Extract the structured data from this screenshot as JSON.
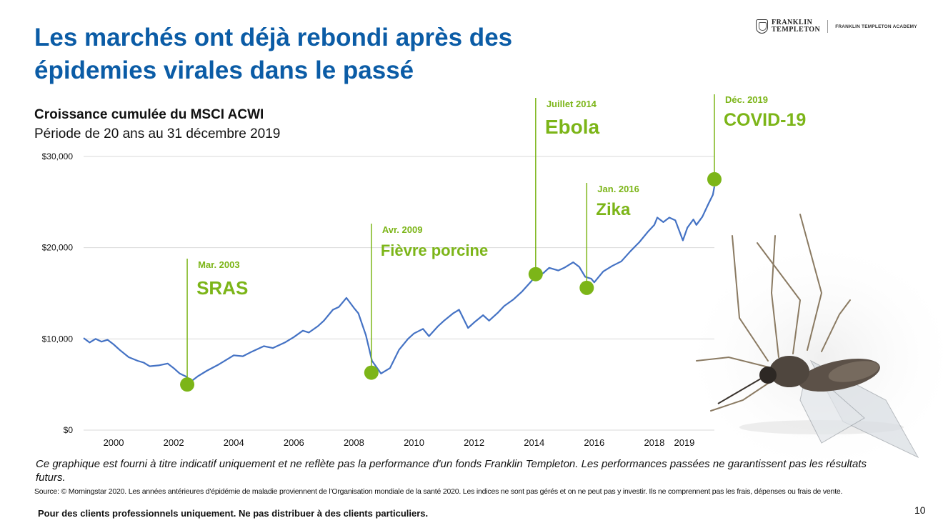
{
  "slide": {
    "title_line1": "Les marchés ont déjà rebondi après des",
    "title_line2": "épidemies virales dans le passé",
    "page_number": "10"
  },
  "logo": {
    "name_line1": "FRANKLIN",
    "name_line2": "TEMPLETON",
    "academy": "FRANKLIN TEMPLETON ACADEMY"
  },
  "chart_title": "Croissance cumulée du MSCI ACWI",
  "chart_subtitle": "Période de 20 ans au 31 décembre 2019",
  "disclaimer": "Ce graphique est fourni à titre indicatif uniquement et ne reflète pas la performance d'un fonds Franklin Templeton. Les performances passées ne garantissent pas les résultats futurs.",
  "source": "Source: © Morningstar 2020. Les années antérieures d'épidémie de maladie proviennent de l'Organisation mondiale de la santé 2020. Les indices ne sont pas gérés et on ne peut pas y investir. Ils ne comprennent pas les frais, dépenses ou frais de vente.",
  "footer": "Pour des clients professionnels uniquement. Ne pas distribuer à des clients particuliers.",
  "colors": {
    "title": "#0b5ca6",
    "line": "#4472c4",
    "accent": "#7cb518",
    "grid": "#d9d9d9"
  },
  "chart_data": {
    "type": "line",
    "title": "Croissance cumulée du MSCI ACWI",
    "subtitle": "Période de 20 ans au 31 décembre 2019",
    "xlim": [
      1999.0,
      2020.0
    ],
    "ylim": [
      0,
      30000
    ],
    "x_ticks": [
      "2000",
      "2002",
      "2004",
      "2006",
      "2008",
      "2010",
      "2012",
      "2014",
      "2016",
      "2018",
      "2019"
    ],
    "y_ticks": [
      "$0",
      "$10,000",
      "$20,000",
      "$30,000"
    ],
    "grid": true,
    "series": [
      {
        "values": [
          [
            1999.0,
            10100
          ],
          [
            1999.2,
            9600
          ],
          [
            1999.4,
            10000
          ],
          [
            1999.6,
            9700
          ],
          [
            1999.8,
            9900
          ],
          [
            2000.0,
            9400
          ],
          [
            2000.2,
            8800
          ],
          [
            2000.5,
            8000
          ],
          [
            2000.8,
            7600
          ],
          [
            2001.0,
            7400
          ],
          [
            2001.2,
            7000
          ],
          [
            2001.5,
            7100
          ],
          [
            2001.8,
            7300
          ],
          [
            2002.0,
            6800
          ],
          [
            2002.2,
            6200
          ],
          [
            2002.4,
            5900
          ],
          [
            2002.6,
            5400
          ],
          [
            2002.8,
            5900
          ],
          [
            2003.1,
            6500
          ],
          [
            2003.5,
            7200
          ],
          [
            2003.8,
            7800
          ],
          [
            2004.0,
            8200
          ],
          [
            2004.3,
            8100
          ],
          [
            2004.6,
            8600
          ],
          [
            2005.0,
            9200
          ],
          [
            2005.3,
            9000
          ],
          [
            2005.7,
            9600
          ],
          [
            2006.0,
            10200
          ],
          [
            2006.3,
            10900
          ],
          [
            2006.5,
            10700
          ],
          [
            2006.8,
            11400
          ],
          [
            2007.0,
            12000
          ],
          [
            2007.3,
            13200
          ],
          [
            2007.5,
            13500
          ],
          [
            2007.75,
            14500
          ],
          [
            2008.0,
            13400
          ],
          [
            2008.15,
            12800
          ],
          [
            2008.4,
            10400
          ],
          [
            2008.6,
            7600
          ],
          [
            2008.9,
            6200
          ],
          [
            2009.2,
            6800
          ],
          [
            2009.5,
            8800
          ],
          [
            2009.8,
            10000
          ],
          [
            2010.0,
            10600
          ],
          [
            2010.3,
            11100
          ],
          [
            2010.5,
            10300
          ],
          [
            2010.8,
            11400
          ],
          [
            2011.0,
            12000
          ],
          [
            2011.3,
            12800
          ],
          [
            2011.5,
            13200
          ],
          [
            2011.8,
            11200
          ],
          [
            2012.0,
            11800
          ],
          [
            2012.3,
            12600
          ],
          [
            2012.5,
            12000
          ],
          [
            2012.8,
            12900
          ],
          [
            2013.0,
            13600
          ],
          [
            2013.3,
            14300
          ],
          [
            2013.6,
            15200
          ],
          [
            2013.9,
            16300
          ],
          [
            2014.0,
            16700
          ],
          [
            2014.3,
            17200
          ],
          [
            2014.5,
            17800
          ],
          [
            2014.8,
            17500
          ],
          [
            2015.0,
            17800
          ],
          [
            2015.3,
            18400
          ],
          [
            2015.5,
            17900
          ],
          [
            2015.7,
            16800
          ],
          [
            2015.9,
            16600
          ],
          [
            2016.0,
            16200
          ],
          [
            2016.3,
            17400
          ],
          [
            2016.6,
            18000
          ],
          [
            2016.9,
            18500
          ],
          [
            2017.2,
            19600
          ],
          [
            2017.5,
            20600
          ],
          [
            2017.8,
            21800
          ],
          [
            2018.0,
            22500
          ],
          [
            2018.1,
            23300
          ],
          [
            2018.3,
            22800
          ],
          [
            2018.5,
            23300
          ],
          [
            2018.7,
            23000
          ],
          [
            2018.95,
            20800
          ],
          [
            2019.1,
            22200
          ],
          [
            2019.3,
            23100
          ],
          [
            2019.4,
            22500
          ],
          [
            2019.6,
            23400
          ],
          [
            2019.8,
            24800
          ],
          [
            2019.95,
            25800
          ],
          [
            2020.0,
            26700
          ]
        ]
      }
    ],
    "annotations": [
      {
        "date": "Mar. 2003",
        "label": "SRAS",
        "x": 2002.45,
        "y": 5000
      },
      {
        "date": "Avr. 2009",
        "label": "Fièvre porcine",
        "x": 2008.58,
        "y": 6300
      },
      {
        "date": "Juillet 2014",
        "label": "Ebola",
        "x": 2014.05,
        "y": 17100
      },
      {
        "date": "Jan. 2016",
        "label": "Zika",
        "x": 2015.75,
        "y": 15600
      },
      {
        "date": "Déc. 2019",
        "label": "COVID-19",
        "x": 2020.0,
        "y": 27500
      }
    ]
  }
}
